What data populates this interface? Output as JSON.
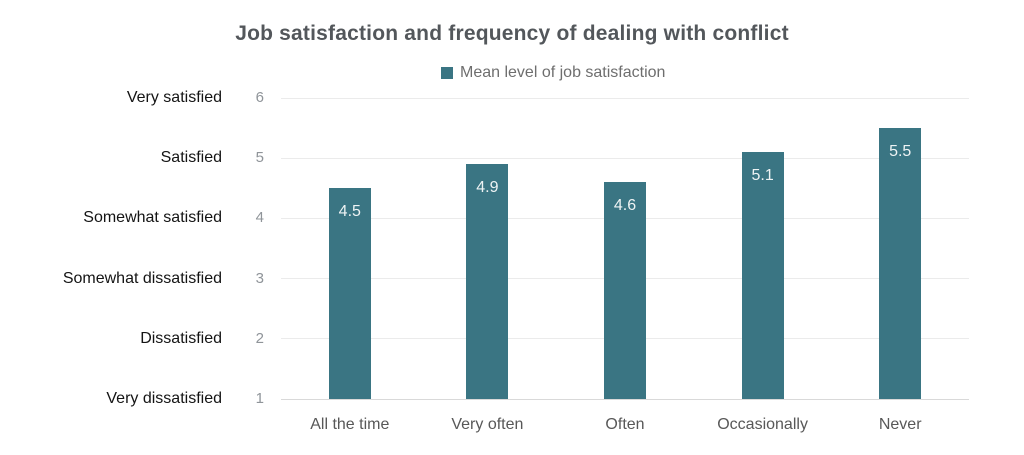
{
  "title": "Job satisfaction and frequency of dealing with conflict",
  "legend": {
    "label": "Mean level of job satisfaction"
  },
  "colors": {
    "bar": "#3a7583",
    "bar_value_label": "#eef3f4",
    "title_text": "#53575b",
    "legend_text": "#6e6e6e",
    "y_category_text": "#141414",
    "y_number_text": "#8f9499",
    "x_label_text": "#585858",
    "gridline": "#ebebeb",
    "baseline": "#d9d9d9"
  },
  "chart_data": {
    "type": "bar",
    "title": "Job satisfaction and frequency of dealing with conflict",
    "series_name": "Mean level of job satisfaction",
    "categories": [
      "All the time",
      "Very often",
      "Often",
      "Occasionally",
      "Never"
    ],
    "values": [
      4.5,
      4.9,
      4.6,
      5.1,
      5.5
    ],
    "value_labels": [
      "4.5",
      "4.9",
      "4.6",
      "5.1",
      "5.5"
    ],
    "xlabel": "",
    "ylabel": "",
    "ylim": [
      1,
      6
    ],
    "y_ticks": [
      {
        "value": 6,
        "label": "Very satisfied"
      },
      {
        "value": 5,
        "label": "Satisfied"
      },
      {
        "value": 4,
        "label": "Somewhat satisfied"
      },
      {
        "value": 3,
        "label": "Somewhat dissatisfied"
      },
      {
        "value": 2,
        "label": "Dissatisfied"
      },
      {
        "value": 1,
        "label": "Very dissatisfied"
      }
    ],
    "grid": true,
    "legend_position": "top"
  }
}
